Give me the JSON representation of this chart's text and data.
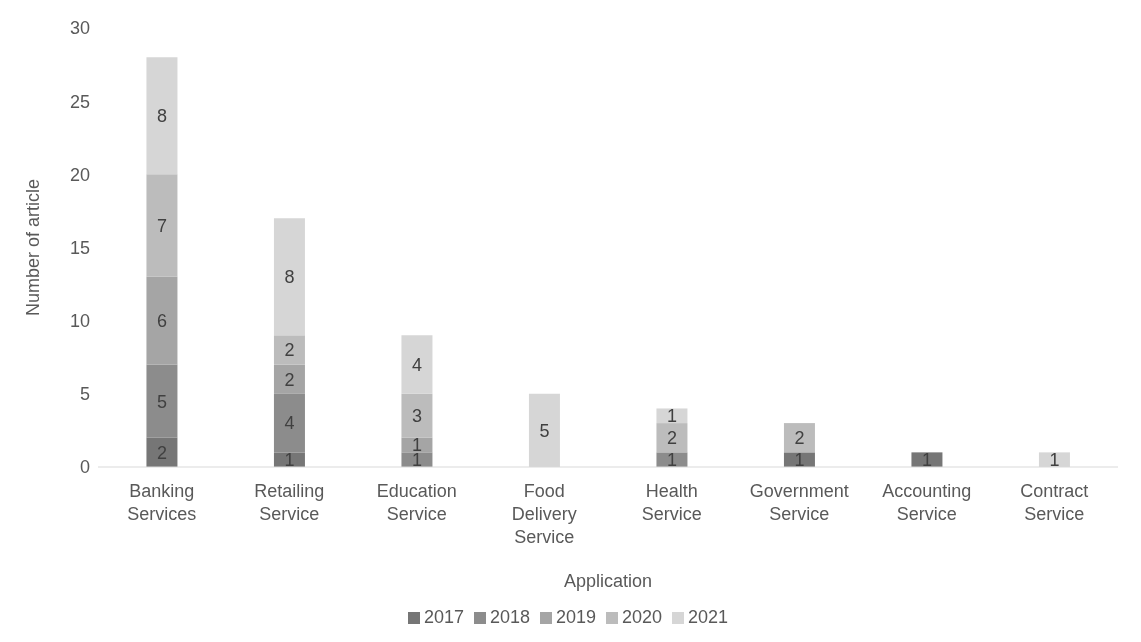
{
  "chart_data": {
    "type": "bar",
    "stacked": true,
    "xlabel": "Application",
    "ylabel": "Number of article",
    "categories": [
      "Banking Services",
      "Retailing Service",
      "Education Service",
      "Food Delivery Service",
      "Health Service",
      "Government Service",
      "Accounting Service",
      "Contract Service"
    ],
    "series": [
      {
        "name": "2017",
        "color": "#767676",
        "values": [
          2,
          1,
          null,
          null,
          null,
          1,
          1,
          null
        ]
      },
      {
        "name": "2018",
        "color": "#8c8c8c",
        "values": [
          5,
          4,
          1,
          null,
          1,
          null,
          null,
          null
        ]
      },
      {
        "name": "2019",
        "color": "#a5a5a5",
        "values": [
          6,
          2,
          1,
          null,
          null,
          null,
          null,
          null
        ]
      },
      {
        "name": "2020",
        "color": "#bcbcbc",
        "values": [
          7,
          2,
          3,
          null,
          2,
          2,
          null,
          null
        ]
      },
      {
        "name": "2021",
        "color": "#d6d6d6",
        "values": [
          8,
          8,
          4,
          5,
          1,
          null,
          null,
          1
        ]
      }
    ],
    "ylim": [
      0,
      30
    ],
    "yticks": [
      0,
      5,
      10,
      15,
      20,
      25,
      30
    ],
    "data_labels": true,
    "legend": "bottom",
    "grid": false
  }
}
